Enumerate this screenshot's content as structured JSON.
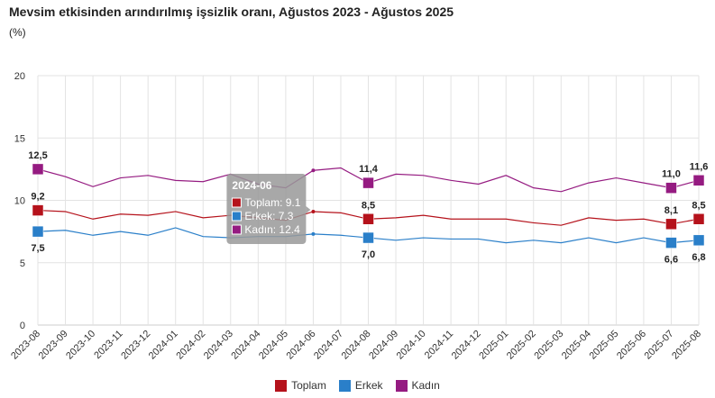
{
  "chart_data": {
    "type": "line",
    "title": "Mevsim etkisinden arındırılmış işsizlik oranı, Ağustos 2023 - Ağustos 2025",
    "ylabel": "(%)",
    "xlabel": "",
    "ylim": [
      0,
      20
    ],
    "yticks": [
      "0",
      "5",
      "10",
      "15",
      "20"
    ],
    "grid": true,
    "legend_position": "bottom",
    "categories": [
      "2023-08",
      "2023-09",
      "2023-10",
      "2023-11",
      "2023-12",
      "2024-01",
      "2024-02",
      "2024-03",
      "2024-04",
      "2024-05",
      "2024-06",
      "2024-07",
      "2024-08",
      "2024-09",
      "2024-10",
      "2024-11",
      "2024-12",
      "2025-01",
      "2025-02",
      "2025-03",
      "2025-04",
      "2025-05",
      "2025-06",
      "2025-07",
      "2025-08"
    ],
    "labeled_indices": [
      0,
      12,
      23,
      24
    ],
    "series": [
      {
        "name": "Toplam",
        "color": "#b5121b",
        "label_pos": "above",
        "labels": [
          "9,2",
          "8,5",
          "8,1",
          "8,5"
        ],
        "values": [
          9.2,
          9.1,
          8.5,
          8.9,
          8.8,
          9.1,
          8.6,
          8.8,
          8.6,
          8.4,
          9.1,
          9.0,
          8.5,
          8.6,
          8.8,
          8.5,
          8.5,
          8.5,
          8.2,
          8.0,
          8.6,
          8.4,
          8.5,
          8.1,
          8.5
        ]
      },
      {
        "name": "Erkek",
        "color": "#2a7fc9",
        "label_pos": "below",
        "labels": [
          "7,5",
          "7,0",
          "6,6",
          "6,8"
        ],
        "values": [
          7.5,
          7.6,
          7.2,
          7.5,
          7.2,
          7.8,
          7.1,
          7.0,
          7.1,
          7.1,
          7.3,
          7.2,
          7.0,
          6.8,
          7.0,
          6.9,
          6.9,
          6.6,
          6.8,
          6.6,
          7.0,
          6.6,
          7.0,
          6.6,
          6.8
        ]
      },
      {
        "name": "Kadın",
        "color": "#951b81",
        "label_pos": "above",
        "labels": [
          "12,5",
          "11,4",
          "11,0",
          "11,6"
        ],
        "values": [
          12.5,
          11.9,
          11.1,
          11.8,
          12.0,
          11.6,
          11.5,
          12.1,
          11.3,
          11.0,
          12.4,
          12.6,
          11.4,
          12.1,
          12.0,
          11.6,
          11.3,
          12.0,
          11.0,
          10.7,
          11.4,
          11.8,
          11.4,
          11.0,
          11.6
        ]
      }
    ],
    "tooltip": {
      "category": "2024-06",
      "rows": [
        "Toplam: 9.1",
        "Erkek: 7.3",
        "Kadın: 12.4"
      ]
    }
  }
}
